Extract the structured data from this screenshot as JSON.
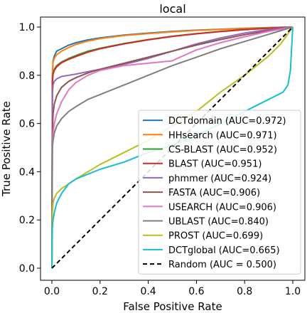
{
  "chart_data": {
    "type": "line",
    "title": "local",
    "xlabel": "False Positive Rate",
    "ylabel": "True Positive Rate",
    "xlim": [
      0,
      1
    ],
    "ylim": [
      0,
      1
    ],
    "xticks": [
      0.0,
      0.2,
      0.4,
      0.6,
      0.8,
      1.0
    ],
    "yticks": [
      0.0,
      0.2,
      0.4,
      0.6,
      0.8,
      1.0
    ],
    "xtick_labels": [
      "0.0",
      "0.2",
      "0.4",
      "0.6",
      "0.8",
      "1.0"
    ],
    "ytick_labels": [
      "0.0",
      "0.2",
      "0.4",
      "0.6",
      "0.8",
      "1.0"
    ],
    "grid": false,
    "legend_position": "lower-right",
    "series": [
      {
        "name": "DCTdomain (AUC=0.972)",
        "color": "#1f77b4",
        "style": "solid",
        "x": [
          0,
          0.002,
          0.005,
          0.01,
          0.02,
          0.04,
          0.07,
          0.1,
          0.15,
          0.2,
          0.3,
          0.4,
          0.5,
          0.6,
          0.7,
          0.8,
          0.9,
          1.0
        ],
        "y": [
          0,
          0.8,
          0.86,
          0.88,
          0.9,
          0.91,
          0.925,
          0.935,
          0.947,
          0.955,
          0.967,
          0.975,
          0.982,
          0.987,
          0.991,
          0.995,
          0.998,
          1.0
        ]
      },
      {
        "name": "HHsearch (AUC=0.971)",
        "color": "#ff7f0e",
        "style": "solid",
        "x": [
          0,
          0.002,
          0.005,
          0.01,
          0.02,
          0.04,
          0.07,
          0.1,
          0.15,
          0.2,
          0.3,
          0.4,
          0.5,
          0.6,
          0.7,
          0.8,
          0.9,
          1.0
        ],
        "y": [
          0,
          0.8,
          0.855,
          0.87,
          0.885,
          0.9,
          0.915,
          0.928,
          0.942,
          0.952,
          0.965,
          0.973,
          0.98,
          0.986,
          0.99,
          0.994,
          0.997,
          1.0
        ]
      },
      {
        "name": "CS-BLAST (AUC=0.952)",
        "color": "#2ca02c",
        "style": "solid",
        "x": [
          0,
          0.002,
          0.005,
          0.01,
          0.02,
          0.04,
          0.07,
          0.1,
          0.15,
          0.2,
          0.3,
          0.4,
          0.5,
          0.6,
          0.7,
          0.8,
          0.9,
          1.0
        ],
        "y": [
          0,
          0.78,
          0.81,
          0.825,
          0.84,
          0.855,
          0.87,
          0.882,
          0.9,
          0.912,
          0.932,
          0.948,
          0.962,
          0.973,
          0.982,
          0.99,
          0.996,
          1.0
        ]
      },
      {
        "name": "BLAST (AUC=0.951)",
        "color": "#d62728",
        "style": "solid",
        "x": [
          0,
          0.002,
          0.005,
          0.01,
          0.02,
          0.04,
          0.07,
          0.1,
          0.15,
          0.2,
          0.3,
          0.4,
          0.5,
          0.6,
          0.7,
          0.8,
          0.9,
          1.0
        ],
        "y": [
          0,
          0.77,
          0.805,
          0.82,
          0.835,
          0.852,
          0.866,
          0.878,
          0.896,
          0.91,
          0.93,
          0.947,
          0.961,
          0.972,
          0.981,
          0.989,
          0.995,
          1.0
        ]
      },
      {
        "name": "phmmer (AUC=0.924)",
        "color": "#9467bd",
        "style": "solid",
        "x": [
          0,
          0.002,
          0.005,
          0.01,
          0.02,
          0.04,
          0.07,
          0.1,
          0.15,
          0.2,
          0.3,
          0.4,
          0.5,
          0.6,
          0.7,
          0.8,
          0.9,
          1.0
        ],
        "y": [
          0,
          0.72,
          0.76,
          0.775,
          0.785,
          0.795,
          0.8,
          0.805,
          0.815,
          0.825,
          0.845,
          0.87,
          0.9,
          0.93,
          0.955,
          0.975,
          0.99,
          1.0
        ]
      },
      {
        "name": "FASTA (AUC=0.906)",
        "color": "#8c564b",
        "style": "solid",
        "x": [
          0,
          0.002,
          0.005,
          0.01,
          0.02,
          0.04,
          0.07,
          0.1,
          0.15,
          0.2,
          0.3,
          0.4,
          0.5,
          0.6,
          0.7,
          0.8,
          0.9,
          1.0
        ],
        "y": [
          0,
          0.55,
          0.64,
          0.68,
          0.715,
          0.75,
          0.775,
          0.79,
          0.81,
          0.825,
          0.85,
          0.875,
          0.9,
          0.925,
          0.948,
          0.968,
          0.985,
          1.0
        ]
      },
      {
        "name": "USEARCH (AUC=0.906)",
        "color": "#e377c2",
        "style": "solid",
        "x": [
          0,
          0.002,
          0.005,
          0.01,
          0.02,
          0.04,
          0.07,
          0.1,
          0.15,
          0.2,
          0.3,
          0.4,
          0.5,
          0.52,
          0.6,
          0.7,
          0.8,
          0.9,
          1.0
        ],
        "y": [
          0,
          0.5,
          0.56,
          0.6,
          0.64,
          0.69,
          0.74,
          0.77,
          0.8,
          0.82,
          0.84,
          0.85,
          0.86,
          0.87,
          0.905,
          0.935,
          0.96,
          0.982,
          1.0
        ]
      },
      {
        "name": "UBLAST (AUC=0.840)",
        "color": "#7f7f7f",
        "style": "solid",
        "x": [
          0,
          0.002,
          0.005,
          0.01,
          0.02,
          0.04,
          0.07,
          0.1,
          0.15,
          0.2,
          0.3,
          0.4,
          0.5,
          0.6,
          0.7,
          0.8,
          0.9,
          1.0
        ],
        "y": [
          0,
          0.5,
          0.53,
          0.56,
          0.59,
          0.62,
          0.65,
          0.67,
          0.7,
          0.72,
          0.76,
          0.8,
          0.84,
          0.875,
          0.91,
          0.94,
          0.97,
          1.0
        ]
      },
      {
        "name": "PROST (AUC=0.699)",
        "color": "#bcbd22",
        "style": "solid",
        "x": [
          0,
          0.002,
          0.005,
          0.01,
          0.02,
          0.04,
          0.07,
          0.1,
          0.15,
          0.2,
          0.3,
          0.4,
          0.5,
          0.6,
          0.7,
          0.8,
          0.9,
          0.95,
          1.0
        ],
        "y": [
          0,
          0.23,
          0.27,
          0.29,
          0.31,
          0.33,
          0.35,
          0.37,
          0.4,
          0.43,
          0.48,
          0.53,
          0.59,
          0.65,
          0.73,
          0.8,
          0.88,
          0.93,
          1.0
        ]
      },
      {
        "name": "DCTglobal (AUC=0.665)",
        "color": "#17becf",
        "style": "solid",
        "x": [
          0,
          0.002,
          0.005,
          0.01,
          0.02,
          0.04,
          0.07,
          0.1,
          0.15,
          0.2,
          0.3,
          0.4,
          0.5,
          0.6,
          0.7,
          0.8,
          0.9,
          0.96,
          0.98,
          0.99,
          1.0
        ],
        "y": [
          0,
          0.17,
          0.2,
          0.23,
          0.27,
          0.31,
          0.35,
          0.37,
          0.39,
          0.41,
          0.44,
          0.48,
          0.51,
          0.55,
          0.6,
          0.65,
          0.7,
          0.73,
          0.76,
          0.82,
          1.0
        ]
      },
      {
        "name": "Random (AUC = 0.500)",
        "color": "#000000",
        "style": "dashed",
        "x": [
          0,
          1
        ],
        "y": [
          0,
          1
        ]
      }
    ]
  }
}
